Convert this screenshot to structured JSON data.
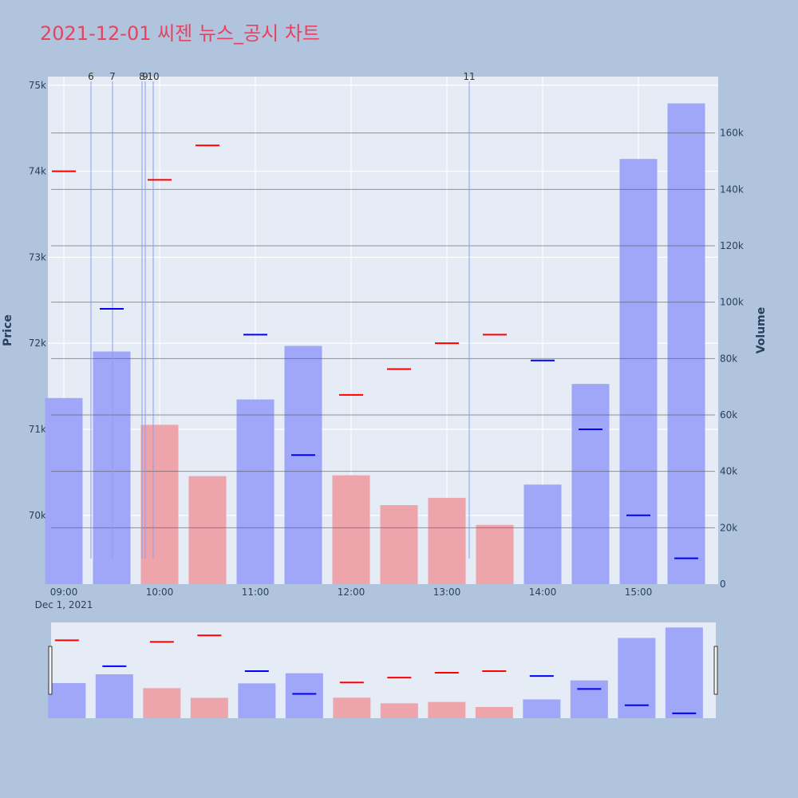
{
  "chart_title": "2021-12-01 씨젠 뉴스_공시 차트",
  "colors": {
    "background": "#b0c4de",
    "plot_bg": "#e5ecf6",
    "title": "#e8425f",
    "volume_up": "#a0a6f8",
    "volume_down": "#eda4ab",
    "price_high": "#ff0000",
    "price_low": "#0000ff",
    "news_line": "#8a9cf0"
  },
  "chart_data": {
    "type": "bar",
    "title": "2021-12-01 씨젠 뉴스_공시 차트",
    "x_date_label": "Dec 1, 2021",
    "x_ticks": [
      "09:00",
      "10:00",
      "11:00",
      "12:00",
      "13:00",
      "14:00",
      "15:00"
    ],
    "y_left": {
      "label": "Price",
      "range": [
        69200,
        75100
      ],
      "ticks": [
        70000,
        71000,
        72000,
        73000,
        74000,
        75000
      ],
      "tick_labels": [
        "70k",
        "71k",
        "72k",
        "73k",
        "74k",
        "75k"
      ]
    },
    "y_right": {
      "label": "Volume",
      "range": [
        0,
        180000
      ],
      "ticks": [
        0,
        20000,
        40000,
        60000,
        80000,
        100000,
        120000,
        140000,
        160000
      ],
      "tick_labels": [
        "0",
        "20k",
        "40k",
        "60k",
        "80k",
        "100k",
        "120k",
        "140k",
        "160k"
      ]
    },
    "x_range_minutes": [
      -10,
      410
    ],
    "bars": [
      {
        "t": 0,
        "volume": 66000,
        "dir": "up"
      },
      {
        "t": 30,
        "volume": 82500,
        "dir": "up"
      },
      {
        "t": 60,
        "volume": 56500,
        "dir": "down"
      },
      {
        "t": 90,
        "volume": 38300,
        "dir": "down"
      },
      {
        "t": 120,
        "volume": 65500,
        "dir": "up"
      },
      {
        "t": 150,
        "volume": 84500,
        "dir": "up"
      },
      {
        "t": 180,
        "volume": 38600,
        "dir": "down"
      },
      {
        "t": 210,
        "volume": 28000,
        "dir": "down"
      },
      {
        "t": 240,
        "volume": 30600,
        "dir": "down"
      },
      {
        "t": 270,
        "volume": 21000,
        "dir": "down"
      },
      {
        "t": 300,
        "volume": 35300,
        "dir": "up"
      },
      {
        "t": 330,
        "volume": 71000,
        "dir": "up"
      },
      {
        "t": 360,
        "volume": 150800,
        "dir": "up"
      },
      {
        "t": 390,
        "volume": 170500,
        "dir": "up"
      }
    ],
    "price_marks": [
      {
        "t": 0,
        "price": 74000,
        "kind": "high"
      },
      {
        "t": 30,
        "price": 72400,
        "kind": "low"
      },
      {
        "t": 60,
        "price": 73900,
        "kind": "high"
      },
      {
        "t": 90,
        "price": 74300,
        "kind": "high"
      },
      {
        "t": 120,
        "price": 72100,
        "kind": "low"
      },
      {
        "t": 150,
        "price": 70700,
        "kind": "low"
      },
      {
        "t": 180,
        "price": 71400,
        "kind": "high"
      },
      {
        "t": 210,
        "price": 71700,
        "kind": "high"
      },
      {
        "t": 240,
        "price": 72000,
        "kind": "high"
      },
      {
        "t": 270,
        "price": 72100,
        "kind": "high"
      },
      {
        "t": 300,
        "price": 71800,
        "kind": "low"
      },
      {
        "t": 330,
        "price": 71000,
        "kind": "low"
      },
      {
        "t": 360,
        "price": 70000,
        "kind": "low"
      },
      {
        "t": 390,
        "price": 69500,
        "kind": "low"
      }
    ],
    "news_markers": [
      {
        "label": "6",
        "t": 17
      },
      {
        "label": "7",
        "t": 30.5
      },
      {
        "label": "8",
        "t": 49
      },
      {
        "label": "9",
        "t": 51
      },
      {
        "label": "10",
        "t": 56
      },
      {
        "label": "11",
        "t": 254
      }
    ],
    "news_bottom_price": 69500,
    "grid": true
  }
}
